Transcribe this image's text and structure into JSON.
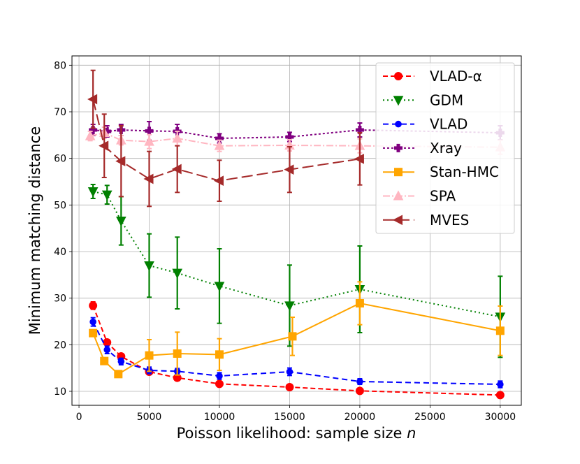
{
  "chart_data": {
    "type": "line",
    "title": "",
    "xlabel": "Poisson likelihood: sample size",
    "xlabel_var": "n",
    "ylabel": "Minimum matching distance",
    "xlim": [
      -500,
      31500
    ],
    "ylim": [
      7,
      82
    ],
    "xticks": [
      0,
      5000,
      10000,
      15000,
      20000,
      25000,
      30000
    ],
    "yticks": [
      10,
      20,
      30,
      40,
      50,
      60,
      70,
      80
    ],
    "grid": true,
    "legend_position": "top-right",
    "series": [
      {
        "name": "VLAD-α",
        "color": "#ff0000",
        "dash": "7,4",
        "marker": "circle",
        "x": [
          1000,
          2000,
          3000,
          5000,
          7000,
          10000,
          15000,
          20000,
          30000
        ],
        "y": [
          28.4,
          20.5,
          17.5,
          14.2,
          12.9,
          11.6,
          10.9,
          10.1,
          9.2
        ],
        "err": [
          0.8,
          0.6,
          0.5,
          0.5,
          0.4,
          0.3,
          0.3,
          0.3,
          0.3
        ]
      },
      {
        "name": "GDM",
        "color": "#008000",
        "dash": "2,4",
        "marker": "triangle-down",
        "x": [
          1000,
          2000,
          3000,
          5000,
          7000,
          10000,
          15000,
          20000,
          30000
        ],
        "y": [
          52.9,
          52.2,
          46.6,
          37.0,
          35.4,
          32.6,
          28.4,
          31.9,
          26.0
        ],
        "err": [
          1.5,
          2.0,
          5.2,
          6.8,
          7.7,
          8.0,
          8.7,
          9.3,
          8.7
        ]
      },
      {
        "name": "VLAD",
        "color": "#0000ff",
        "dash": "8,5",
        "marker": "dot",
        "x": [
          1000,
          2000,
          3000,
          5000,
          7000,
          10000,
          15000,
          20000,
          30000
        ],
        "y": [
          24.9,
          18.9,
          16.4,
          14.5,
          14.3,
          13.3,
          14.2,
          12.1,
          11.5
        ],
        "err": [
          0.9,
          0.8,
          0.7,
          0.7,
          0.6,
          0.7,
          0.8,
          0.6,
          0.7
        ]
      },
      {
        "name": "Xray",
        "color": "#800080",
        "dash": "3,3",
        "marker": "plus",
        "x": [
          1000,
          2000,
          3000,
          5000,
          7000,
          10000,
          15000,
          20000,
          30000
        ],
        "y": [
          66.1,
          65.8,
          66.1,
          65.9,
          65.8,
          64.3,
          64.6,
          66.1,
          65.5
        ],
        "err": [
          1.2,
          1.2,
          1.2,
          2.0,
          1.5,
          1.0,
          1.0,
          1.5,
          1.5
        ]
      },
      {
        "name": "Stan-HMC",
        "color": "#ffa500",
        "dash": "",
        "marker": "square",
        "x": [
          1000,
          1800,
          2800,
          5000,
          7000,
          10000,
          15200,
          20000,
          30000
        ],
        "y": [
          22.5,
          16.5,
          13.7,
          17.7,
          18.1,
          17.9,
          21.8,
          28.9,
          23.0
        ],
        "err": [
          0.5,
          0.4,
          0.5,
          3.4,
          4.6,
          3.4,
          4.1,
          4.6,
          5.3
        ],
        "dash_alt": "14,3,3,3"
      },
      {
        "name": "SPA",
        "color": "#ffb6c1",
        "dash": "10,3,2,3",
        "marker": "triangle-up",
        "x": [
          800,
          1800,
          3000,
          5000,
          7000,
          10000,
          15000,
          20000,
          30000
        ],
        "y": [
          64.8,
          65.5,
          63.9,
          63.6,
          64.3,
          62.7,
          62.8,
          62.7,
          62.4
        ],
        "err": [
          1.0,
          1.2,
          1.0,
          1.5,
          1.5,
          1.2,
          1.2,
          1.5,
          1.5
        ]
      },
      {
        "name": "MVES",
        "color": "#a52a2a",
        "dash": "16,6",
        "marker": "triangle-left",
        "x": [
          1000,
          1800,
          3000,
          5000,
          7000,
          10000,
          15000,
          20000
        ],
        "y": [
          72.7,
          62.7,
          59.4,
          55.6,
          57.7,
          55.2,
          57.6,
          59.9
        ],
        "err": [
          6.2,
          6.8,
          7.6,
          5.9,
          5.0,
          4.4,
          4.9,
          5.6
        ]
      }
    ]
  }
}
